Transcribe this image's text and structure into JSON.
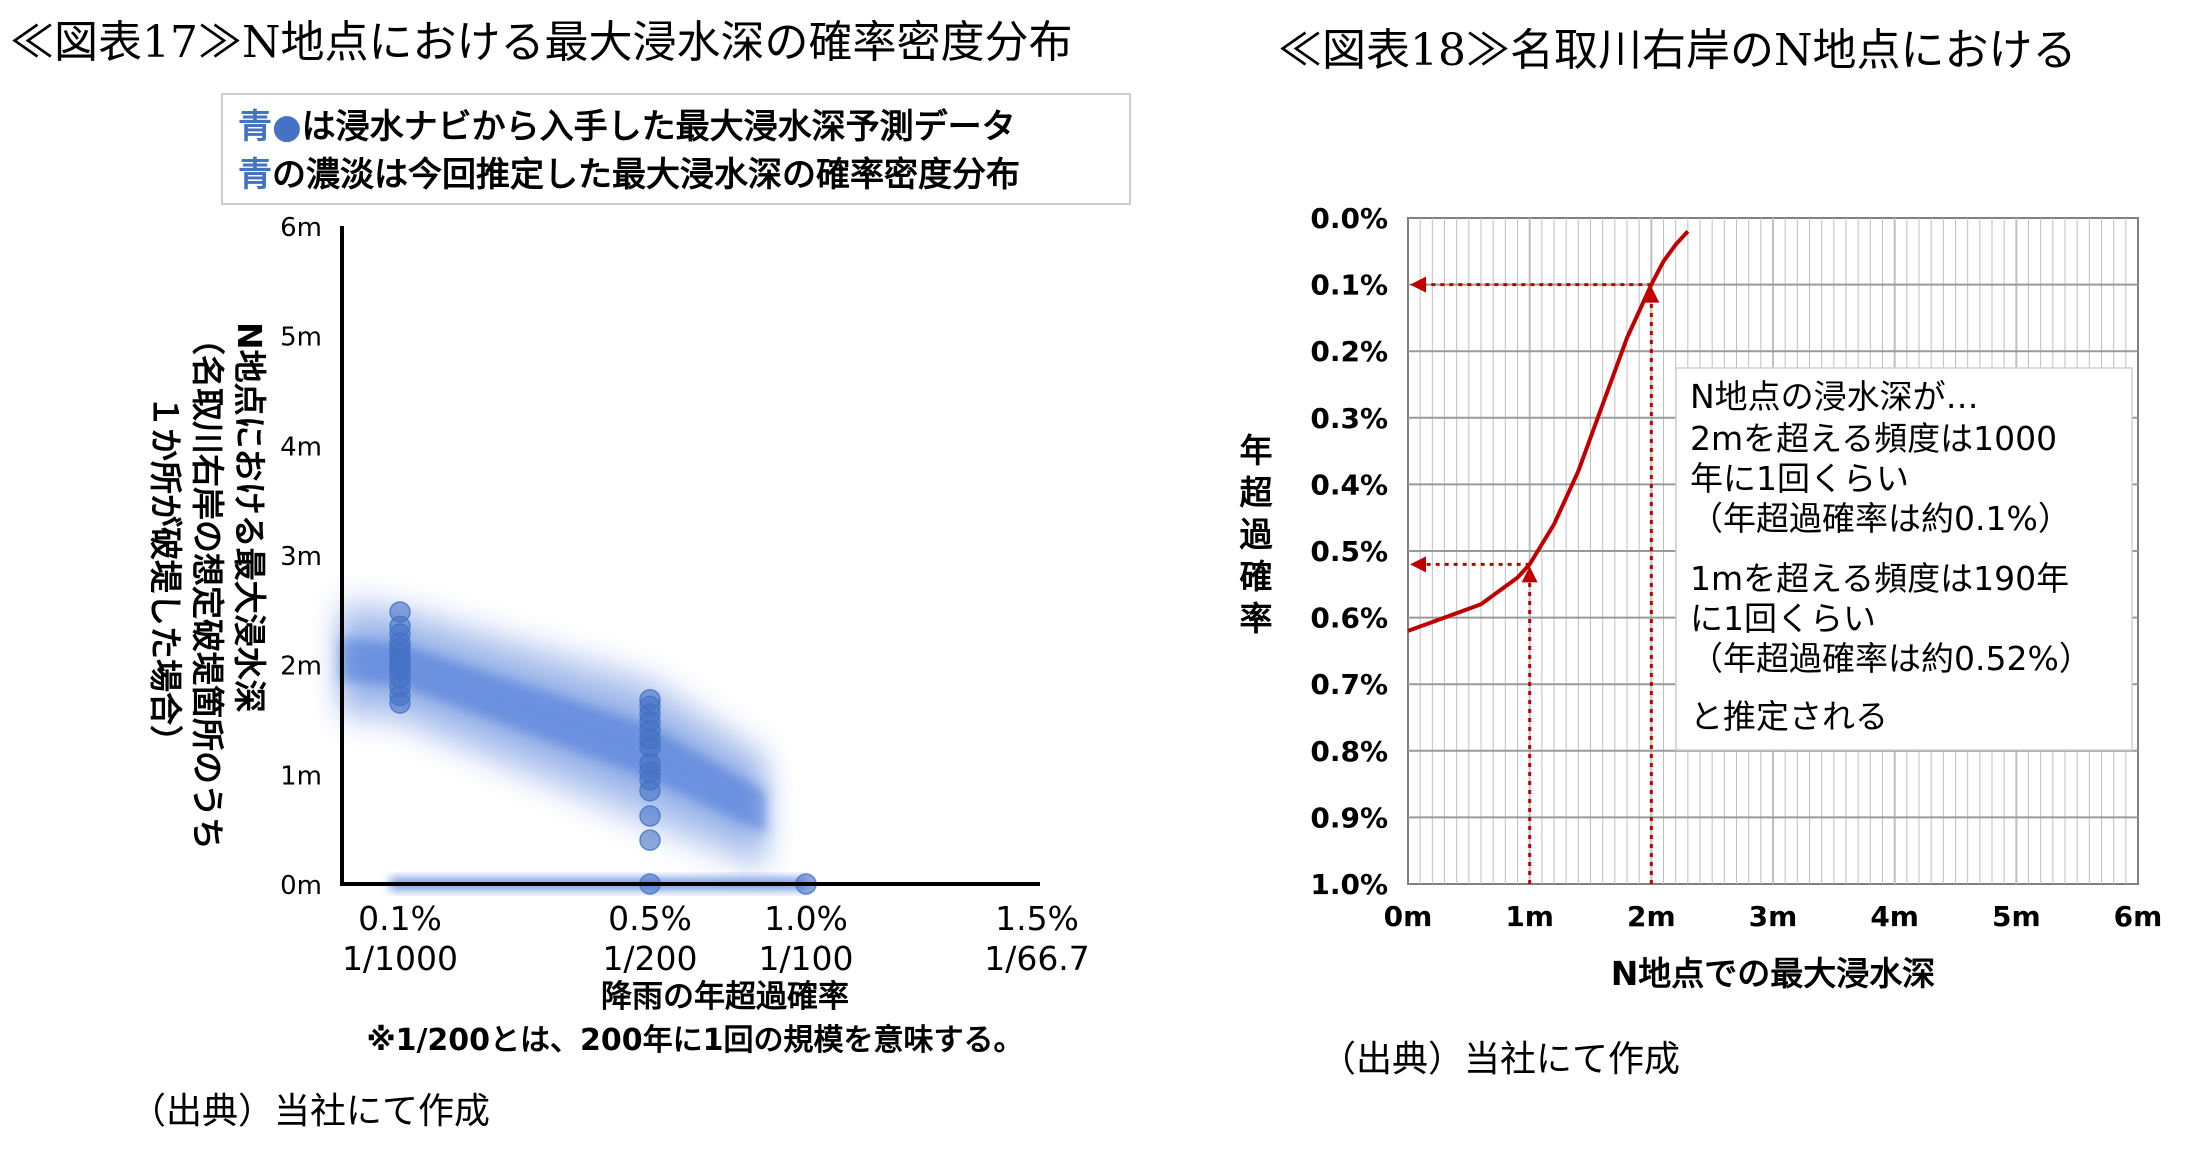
{
  "figure17": {
    "title": "≪図表17≫N地点における最大浸水深の確率密度分布",
    "legend": [
      {
        "prefix": "青",
        "marker": "●",
        "text": "は浸水ナビから入手した最大浸水深予測データ"
      },
      {
        "prefix": "青",
        "marker": "",
        "text": "の濃淡は今回推定した最大浸水深の確率密度分布"
      }
    ],
    "ylabel_lines": [
      "N地点における最大浸水深",
      "（名取川右岸の想定破堤箇所のうち",
      "１か所が破堤した場合）"
    ],
    "xlabel": "降雨の年超過確率",
    "note": "※1/200とは、200年に1回の規模を意味する。",
    "source": "（出典）当社にて作成",
    "colors": {
      "scatter": "#4472c4",
      "density": "#3d6fd6",
      "axis": "#000000"
    }
  },
  "figure18": {
    "title": "≪図表18≫名取川右岸のN地点における",
    "ylabel": "年超過確率",
    "xlabel": "N地点での最大浸水深",
    "annotation_lines": [
      "N地点の浸水深が…",
      "2mを超える頻度は1000",
      "年に1回くらい",
      "（年超過確率は約0.1%）",
      "1mを超える頻度は190年",
      "に1回くらい",
      "（年超過確率は約0.52%）",
      "と推定される"
    ],
    "source": "（出典）当社にて作成",
    "colors": {
      "curve": "#c00000",
      "grid": "#bfbfbf"
    }
  },
  "chart_data": [
    {
      "type": "scatter",
      "x_ticks": [
        {
          "value": 0.1,
          "label1": "0.1%",
          "label2": "1/1000"
        },
        {
          "value": 0.5,
          "label1": "0.5%",
          "label2": "1/200"
        },
        {
          "value": 1.0,
          "label1": "1.0%",
          "label2": "1/100"
        },
        {
          "value": 1.5,
          "label1": "1.5%",
          "label2": "1/66.7"
        }
      ],
      "y_ticks": [
        "0m",
        "1m",
        "2m",
        "3m",
        "4m",
        "5m",
        "6m"
      ],
      "xlim": [
        0,
        1.62
      ],
      "ylim": [
        0,
        6
      ],
      "series": [
        {
          "x": 0.1,
          "y": [
            1.65,
            1.72,
            1.8,
            1.88,
            1.95,
            2.0,
            2.05,
            2.1,
            2.15,
            2.2,
            2.28,
            2.35,
            2.48
          ]
        },
        {
          "x": 0.5,
          "y": [
            0.0,
            0.4,
            0.62,
            0.85,
            0.95,
            1.02,
            1.1,
            1.25,
            1.32,
            1.4,
            1.48,
            1.55,
            1.62,
            1.68
          ]
        },
        {
          "x": 1.0,
          "y": [
            0.0
          ]
        }
      ],
      "density_bands": [
        {
          "x": [
            0.1,
            0.5,
            1.0
          ],
          "y_center": [
            2.0,
            1.2,
            0.65
          ],
          "spread": [
            0.55,
            0.7,
            0.55
          ]
        }
      ],
      "zero_band": {
        "x_from": 0.15,
        "x_to": 1.0,
        "y": 0.0
      }
    },
    {
      "type": "line",
      "x_ticks": [
        "0m",
        "1m",
        "2m",
        "3m",
        "4m",
        "5m",
        "6m"
      ],
      "y_ticks": [
        "0.0%",
        "0.1%",
        "0.2%",
        "0.3%",
        "0.4%",
        "0.5%",
        "0.6%",
        "0.7%",
        "0.8%",
        "0.9%",
        "1.0%"
      ],
      "xlim": [
        0,
        6
      ],
      "ylim": [
        0,
        1.0
      ],
      "y_inverted": true,
      "curve": {
        "x": [
          0.0,
          0.3,
          0.6,
          0.9,
          1.0,
          1.2,
          1.4,
          1.6,
          1.8,
          1.9,
          2.0,
          2.1,
          2.2,
          2.3
        ],
        "y": [
          0.62,
          0.6,
          0.58,
          0.54,
          0.52,
          0.46,
          0.38,
          0.28,
          0.18,
          0.14,
          0.1,
          0.065,
          0.04,
          0.02
        ]
      },
      "markers": [
        {
          "depth_m": 2.0,
          "probability_pct": 0.1
        },
        {
          "depth_m": 1.0,
          "probability_pct": 0.52
        }
      ]
    }
  ]
}
